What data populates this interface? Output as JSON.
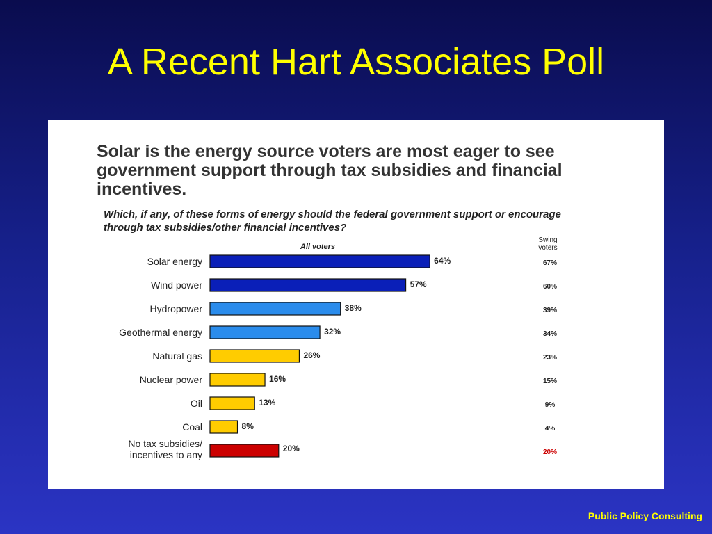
{
  "slide": {
    "title": "A Recent Hart Associates Poll",
    "footer": "Public Policy Consulting"
  },
  "chart_data": {
    "type": "bar",
    "orientation": "horizontal",
    "title": "Solar is the energy source voters are most eager to see government support through tax subsidies and financial incentives.",
    "subtitle": "Which, if any, of these forms of energy should the federal government support or encourage through tax subsidies/other financial incentives?",
    "series_label": "All voters",
    "side_column_label": "Swing voters",
    "categories": [
      "Solar energy",
      "Wind power",
      "Hydropower",
      "Geothermal energy",
      "Natural gas",
      "Nuclear power",
      "Oil",
      "Coal",
      "No tax subsidies/ incentives to any"
    ],
    "value_labels": [
      "64%",
      "57%",
      "38%",
      "32%",
      "26%",
      "16%",
      "13%",
      "8%",
      "20%"
    ],
    "swing_labels": [
      "67%",
      "60%",
      "39%",
      "34%",
      "23%",
      "15%",
      "9%",
      "4%",
      "20%"
    ],
    "series": [
      {
        "values": [
          64,
          57,
          38,
          32,
          26,
          16,
          13,
          8,
          20
        ]
      },
      {
        "values": [
          67,
          60,
          39,
          34,
          23,
          15,
          9,
          4,
          20
        ]
      }
    ],
    "colors": [
      "#0a1fb8",
      "#0a1fb8",
      "#2a8cec",
      "#2a8cec",
      "#ffcc00",
      "#ffcc00",
      "#ffcc00",
      "#ffcc00",
      "#cc0000"
    ],
    "swing_label_colors": [
      "#222222",
      "#222222",
      "#222222",
      "#222222",
      "#222222",
      "#222222",
      "#222222",
      "#222222",
      "#cc0000"
    ],
    "xlim": [
      0,
      100
    ],
    "grid": false,
    "legend": "none"
  }
}
